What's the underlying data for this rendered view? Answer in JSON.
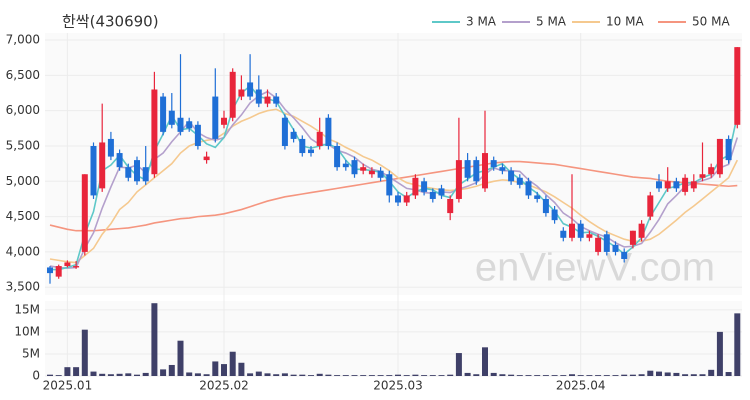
{
  "chart_data": {
    "type": "candlestick",
    "title": "한싹(430690)",
    "watermark": "enViewV.com",
    "categories": [
      null,
      null,
      "2025.01",
      null,
      null,
      null,
      null,
      null,
      null,
      null,
      null,
      null,
      null,
      null,
      null,
      null,
      null,
      null,
      null,
      null,
      "2025.02",
      null,
      null,
      null,
      null,
      null,
      null,
      null,
      null,
      null,
      null,
      null,
      null,
      null,
      null,
      null,
      null,
      null,
      null,
      null,
      "2025.03",
      null,
      null,
      null,
      null,
      null,
      null,
      null,
      null,
      null,
      null,
      null,
      null,
      null,
      null,
      null,
      null,
      null,
      null,
      null,
      null,
      "2025.04",
      null,
      null,
      null,
      null,
      null,
      null,
      null,
      null,
      null,
      null,
      null,
      null,
      null,
      null,
      null,
      null,
      null,
      null
    ],
    "up_color": "#e8253b",
    "down_color": "#1f6fd6",
    "ohlc": [
      [
        3780,
        3800,
        3550,
        3700
      ],
      [
        3650,
        3820,
        3620,
        3800
      ],
      [
        3800,
        3880,
        3780,
        3850
      ],
      [
        3780,
        3870,
        3760,
        3800
      ],
      [
        4000,
        5100,
        3950,
        5100
      ],
      [
        5500,
        5550,
        4750,
        4800
      ],
      [
        4900,
        6100,
        4850,
        5550
      ],
      [
        5600,
        5700,
        5300,
        5350
      ],
      [
        5400,
        5450,
        5150,
        5200
      ],
      [
        5200,
        5250,
        5000,
        5050
      ],
      [
        5300,
        5350,
        4950,
        5000
      ],
      [
        5200,
        5500,
        4950,
        5000
      ],
      [
        5100,
        6550,
        5050,
        6300
      ],
      [
        6200,
        6250,
        5650,
        5700
      ],
      [
        6000,
        6250,
        5750,
        5800
      ],
      [
        5900,
        6800,
        5650,
        5700
      ],
      [
        5850,
        5900,
        5700,
        5750
      ],
      [
        5800,
        5850,
        5450,
        5500
      ],
      [
        5300,
        5420,
        5250,
        5350
      ],
      [
        6200,
        6600,
        5550,
        5600
      ],
      [
        5800,
        6000,
        5750,
        5900
      ],
      [
        5900,
        6600,
        5850,
        6550
      ],
      [
        6200,
        6500,
        6150,
        6300
      ],
      [
        6400,
        6800,
        6150,
        6200
      ],
      [
        6300,
        6500,
        6050,
        6100
      ],
      [
        6100,
        6300,
        6050,
        6200
      ],
      [
        6200,
        6250,
        6050,
        6100
      ],
      [
        5900,
        5950,
        5450,
        5500
      ],
      [
        5700,
        5750,
        5550,
        5600
      ],
      [
        5600,
        5650,
        5350,
        5400
      ],
      [
        5450,
        5500,
        5350,
        5400
      ],
      [
        5500,
        5900,
        5450,
        5700
      ],
      [
        5900,
        5950,
        5450,
        5500
      ],
      [
        5500,
        5550,
        5150,
        5200
      ],
      [
        5250,
        5300,
        5150,
        5200
      ],
      [
        5300,
        5350,
        5050,
        5100
      ],
      [
        5150,
        5250,
        5100,
        5200
      ],
      [
        5100,
        5200,
        5050,
        5150
      ],
      [
        5150,
        5200,
        5000,
        5050
      ],
      [
        5100,
        5150,
        4700,
        4800
      ],
      [
        4800,
        4850,
        4650,
        4700
      ],
      [
        4700,
        4850,
        4650,
        4800
      ],
      [
        4800,
        5100,
        4750,
        5050
      ],
      [
        5000,
        5050,
        4800,
        4850
      ],
      [
        4850,
        4900,
        4700,
        4750
      ],
      [
        4900,
        4950,
        4750,
        4800
      ],
      [
        4550,
        4800,
        4450,
        4750
      ],
      [
        4750,
        5900,
        4700,
        5300
      ],
      [
        5300,
        5400,
        5000,
        5050
      ],
      [
        5300,
        5350,
        4950,
        5000
      ],
      [
        4900,
        6000,
        4850,
        5400
      ],
      [
        5300,
        5350,
        5150,
        5200
      ],
      [
        5200,
        5250,
        5100,
        5150
      ],
      [
        5150,
        5200,
        4950,
        5000
      ],
      [
        5050,
        5100,
        4900,
        4950
      ],
      [
        5000,
        5050,
        4750,
        4800
      ],
      [
        4800,
        4850,
        4700,
        4750
      ],
      [
        4750,
        4800,
        4500,
        4550
      ],
      [
        4600,
        4650,
        4400,
        4450
      ],
      [
        4300,
        4350,
        4150,
        4200
      ],
      [
        4200,
        5100,
        4150,
        4400
      ],
      [
        4400,
        4450,
        4150,
        4200
      ],
      [
        4200,
        4300,
        4150,
        4250
      ],
      [
        4000,
        4250,
        3950,
        4200
      ],
      [
        4250,
        4300,
        3950,
        4000
      ],
      [
        4100,
        4150,
        3950,
        4000
      ],
      [
        4000,
        4050,
        3850,
        3900
      ],
      [
        4100,
        4300,
        4050,
        4300
      ],
      [
        4200,
        4450,
        4150,
        4400
      ],
      [
        4500,
        4850,
        4450,
        4800
      ],
      [
        5000,
        5100,
        4850,
        4900
      ],
      [
        4900,
        5200,
        4850,
        5000
      ],
      [
        5000,
        5050,
        4850,
        4900
      ],
      [
        4850,
        5100,
        4800,
        5050
      ],
      [
        4900,
        5100,
        4850,
        5000
      ],
      [
        5050,
        5550,
        5000,
        5100
      ],
      [
        5100,
        5250,
        5050,
        5200
      ],
      [
        5100,
        5600,
        5050,
        5600
      ],
      [
        5600,
        5650,
        5250,
        5300
      ],
      [
        5800,
        6900,
        5750,
        6900
      ]
    ],
    "series": [
      {
        "name": "3 MA",
        "color": "#5ec8c8",
        "values": [
          3750,
          3750,
          3780,
          3820,
          4250,
          4570,
          5150,
          5230,
          5370,
          5200,
          5080,
          5020,
          5430,
          5670,
          5930,
          5730,
          5750,
          5650,
          5530,
          5480,
          5620,
          6020,
          6250,
          6350,
          6200,
          6170,
          6130,
          5930,
          5730,
          5500,
          5470,
          5500,
          5530,
          5470,
          5300,
          5170,
          5170,
          5150,
          5130,
          5000,
          4850,
          4770,
          4850,
          4900,
          4880,
          4800,
          4770,
          4950,
          5030,
          5120,
          5150,
          5200,
          5250,
          5120,
          5030,
          4920,
          4830,
          4700,
          4580,
          4400,
          4350,
          4270,
          4280,
          4220,
          4150,
          4070,
          3970,
          4070,
          4200,
          4500,
          4700,
          4900,
          4930,
          4980,
          4980,
          5050,
          5100,
          5300,
          5370,
          5930
        ]
      },
      {
        "name": "5 MA",
        "color": "#b4a0cc",
        "values": [
          3800,
          3780,
          3770,
          3780,
          4050,
          4270,
          4620,
          4920,
          5200,
          5190,
          5230,
          5120,
          5310,
          5400,
          5560,
          5700,
          5850,
          5690,
          5620,
          5580,
          5620,
          5800,
          5940,
          6110,
          6210,
          6270,
          6180,
          6020,
          5900,
          5760,
          5600,
          5520,
          5520,
          5440,
          5400,
          5340,
          5240,
          5170,
          5140,
          5060,
          4980,
          4900,
          4880,
          4840,
          4830,
          4850,
          4840,
          4890,
          4930,
          4980,
          5100,
          5190,
          5150,
          5150,
          5140,
          5020,
          4930,
          4810,
          4700,
          4550,
          4470,
          4360,
          4300,
          4250,
          4210,
          4130,
          4070,
          4080,
          4120,
          4280,
          4460,
          4680,
          4800,
          4930,
          4970,
          5010,
          5050,
          5190,
          5240,
          5620
        ]
      },
      {
        "name": "10 MA",
        "color": "#f5c98f",
        "values": [
          3900,
          3880,
          3860,
          3850,
          3950,
          4050,
          4250,
          4400,
          4600,
          4700,
          4850,
          4950,
          5050,
          5150,
          5250,
          5400,
          5500,
          5550,
          5580,
          5600,
          5680,
          5780,
          5850,
          5900,
          5960,
          6000,
          6020,
          5960,
          5920,
          5850,
          5780,
          5700,
          5600,
          5550,
          5480,
          5420,
          5350,
          5300,
          5230,
          5150,
          5050,
          4980,
          4950,
          4920,
          4900,
          4880,
          4870,
          4880,
          4900,
          4930,
          4970,
          5000,
          5020,
          5010,
          4980,
          4950,
          4900,
          4850,
          4780,
          4700,
          4620,
          4520,
          4430,
          4350,
          4280,
          4230,
          4180,
          4150,
          4150,
          4180,
          4250,
          4350,
          4450,
          4560,
          4650,
          4750,
          4850,
          4950,
          5050,
          5300
        ]
      },
      {
        "name": "50 MA",
        "color": "#f5957f",
        "values": [
          4380,
          4350,
          4320,
          4300,
          4300,
          4300,
          4310,
          4320,
          4330,
          4340,
          4360,
          4380,
          4410,
          4430,
          4450,
          4470,
          4480,
          4500,
          4510,
          4520,
          4540,
          4570,
          4600,
          4640,
          4680,
          4720,
          4750,
          4780,
          4800,
          4820,
          4840,
          4860,
          4880,
          4900,
          4920,
          4940,
          4960,
          4980,
          5000,
          5020,
          5040,
          5060,
          5080,
          5100,
          5120,
          5140,
          5160,
          5180,
          5200,
          5220,
          5240,
          5260,
          5270,
          5280,
          5280,
          5270,
          5260,
          5250,
          5240,
          5220,
          5200,
          5180,
          5160,
          5140,
          5120,
          5100,
          5080,
          5060,
          5050,
          5040,
          5020,
          5000,
          4990,
          4980,
          4970,
          4960,
          4950,
          4940,
          4930,
          4940
        ]
      }
    ],
    "ylim": [
      3390,
      7100
    ],
    "yticks": [
      {
        "value": 3500,
        "label": "3,500"
      },
      {
        "value": 4000,
        "label": "4,000"
      },
      {
        "value": 4500,
        "label": "4,500"
      },
      {
        "value": 5000,
        "label": "5,000"
      },
      {
        "value": 5500,
        "label": "5,500"
      },
      {
        "value": 6000,
        "label": "6,000"
      },
      {
        "value": 6500,
        "label": "6,500"
      },
      {
        "value": 7000,
        "label": "7,000"
      }
    ],
    "volume": {
      "color": "#3f4068",
      "values": [
        300000,
        200000,
        2000000,
        2000000,
        10500000,
        1000000,
        500000,
        400000,
        500000,
        600000,
        300000,
        700000,
        16500000,
        1500000,
        2500000,
        8000000,
        800000,
        600000,
        400000,
        3300000,
        2700000,
        5500000,
        3000000,
        600000,
        1000000,
        600000,
        400000,
        600000,
        300000,
        300000,
        200000,
        500000,
        300000,
        200000,
        200000,
        200000,
        200000,
        200000,
        200000,
        200000,
        300000,
        200000,
        300000,
        200000,
        200000,
        200000,
        300000,
        5200000,
        700000,
        400000,
        6500000,
        700000,
        400000,
        300000,
        200000,
        200000,
        200000,
        200000,
        200000,
        200000,
        400000,
        200000,
        200000,
        200000,
        200000,
        200000,
        300000,
        300000,
        400000,
        1200000,
        1000000,
        800000,
        700000,
        400000,
        400000,
        400000,
        1400000,
        10000000,
        900000,
        14200000
      ],
      "ylim": [
        0,
        17000000
      ],
      "yticks": [
        0,
        {
          "value": 5000000,
          "label": "5M"
        },
        {
          "value": 10000000,
          "label": "10M"
        },
        {
          "value": 15000000,
          "label": "15M"
        }
      ]
    }
  }
}
